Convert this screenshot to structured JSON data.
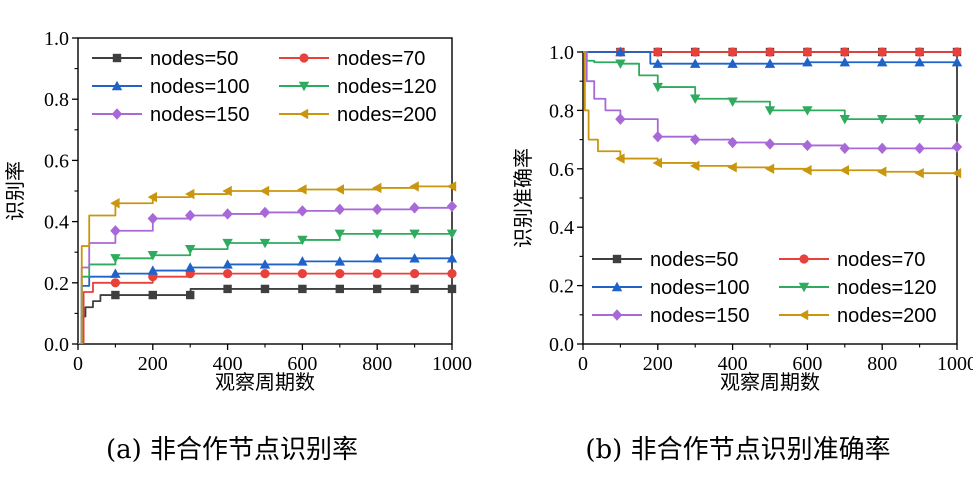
{
  "figure": {
    "caption_left": "(a) 非合作节点识别率",
    "caption_right": "(b) 非合作节点识别准确率"
  },
  "chart_data": [
    {
      "type": "line",
      "title": "",
      "xlabel": "观察周期数",
      "ylabel": "识别率",
      "xlim": [
        0,
        1000
      ],
      "ylim": [
        0,
        1.0
      ],
      "xticks": [
        "0",
        "200",
        "400",
        "600",
        "800",
        "1000"
      ],
      "yticks": [
        "0.0",
        "0.2",
        "0.4",
        "0.6",
        "0.8",
        "1.0"
      ],
      "legend_position": "top",
      "series": [
        {
          "name": "nodes=50",
          "color": "#3f3f3f",
          "marker": "square",
          "x": [
            0,
            10,
            20,
            40,
            60,
            100,
            200,
            300,
            301,
            400,
            500,
            600,
            700,
            800,
            900,
            1000
          ],
          "y": [
            0,
            0.09,
            0.12,
            0.14,
            0.16,
            0.16,
            0.16,
            0.16,
            0.18,
            0.18,
            0.18,
            0.18,
            0.18,
            0.18,
            0.18,
            0.18
          ]
        },
        {
          "name": "nodes=70",
          "color": "#e8403a",
          "marker": "circle",
          "x": [
            0,
            15,
            40,
            100,
            200,
            300,
            400,
            500,
            600,
            700,
            800,
            900,
            1000
          ],
          "y": [
            0,
            0.17,
            0.2,
            0.2,
            0.22,
            0.23,
            0.23,
            0.23,
            0.23,
            0.23,
            0.23,
            0.23,
            0.23
          ]
        },
        {
          "name": "nodes=100",
          "color": "#1f62c8",
          "marker": "triangle-up",
          "x": [
            0,
            10,
            30,
            100,
            200,
            300,
            400,
            500,
            600,
            700,
            800,
            900,
            1000
          ],
          "y": [
            0,
            0.19,
            0.22,
            0.23,
            0.24,
            0.25,
            0.26,
            0.26,
            0.27,
            0.27,
            0.28,
            0.28,
            0.28
          ]
        },
        {
          "name": "nodes=120",
          "color": "#2eab5f",
          "marker": "triangle-down",
          "x": [
            0,
            10,
            30,
            100,
            200,
            300,
            400,
            500,
            600,
            700,
            800,
            900,
            1000
          ],
          "y": [
            0,
            0.22,
            0.26,
            0.28,
            0.29,
            0.31,
            0.33,
            0.33,
            0.34,
            0.36,
            0.36,
            0.36,
            0.36
          ]
        },
        {
          "name": "nodes=150",
          "color": "#a868d8",
          "marker": "diamond",
          "x": [
            0,
            10,
            30,
            100,
            200,
            300,
            400,
            500,
            600,
            700,
            800,
            900,
            1000
          ],
          "y": [
            0,
            0.25,
            0.33,
            0.37,
            0.41,
            0.42,
            0.425,
            0.43,
            0.435,
            0.44,
            0.44,
            0.445,
            0.45
          ]
        },
        {
          "name": "nodes=200",
          "color": "#c9960d",
          "marker": "triangle-left",
          "x": [
            0,
            10,
            30,
            100,
            200,
            300,
            400,
            500,
            600,
            700,
            800,
            900,
            1000
          ],
          "y": [
            0,
            0.32,
            0.42,
            0.46,
            0.48,
            0.49,
            0.5,
            0.5,
            0.505,
            0.505,
            0.51,
            0.515,
            0.515
          ]
        }
      ]
    },
    {
      "type": "line",
      "title": "",
      "xlabel": "观察周期数",
      "ylabel": "识别准确率",
      "xlim": [
        0,
        1000
      ],
      "ylim": [
        0,
        1.0
      ],
      "xticks": [
        "0",
        "200",
        "400",
        "600",
        "800",
        "1000"
      ],
      "yticks": [
        "0.0",
        "0.2",
        "0.4",
        "0.6",
        "0.8",
        "1.0"
      ],
      "legend_position": "bottom",
      "series": [
        {
          "name": "nodes=50",
          "color": "#3f3f3f",
          "marker": "square",
          "x": [
            0,
            100,
            200,
            300,
            400,
            500,
            600,
            700,
            800,
            900,
            1000
          ],
          "y": [
            1.0,
            1.0,
            1.0,
            1.0,
            1.0,
            1.0,
            1.0,
            1.0,
            1.0,
            1.0,
            1.0
          ]
        },
        {
          "name": "nodes=70",
          "color": "#e8403a",
          "marker": "circle",
          "x": [
            0,
            100,
            200,
            300,
            400,
            500,
            600,
            700,
            800,
            900,
            1000
          ],
          "y": [
            1.0,
            1.0,
            1.0,
            1.0,
            1.0,
            1.0,
            1.0,
            1.0,
            1.0,
            1.0,
            1.0
          ]
        },
        {
          "name": "nodes=100",
          "color": "#1f62c8",
          "marker": "triangle-up",
          "x": [
            0,
            100,
            180,
            200,
            300,
            400,
            500,
            600,
            700,
            800,
            900,
            1000
          ],
          "y": [
            1.0,
            1.0,
            0.96,
            0.96,
            0.96,
            0.96,
            0.96,
            0.965,
            0.965,
            0.965,
            0.965,
            0.965
          ]
        },
        {
          "name": "nodes=120",
          "color": "#2eab5f",
          "marker": "triangle-down",
          "x": [
            0,
            10,
            30,
            100,
            150,
            200,
            300,
            400,
            500,
            600,
            700,
            800,
            900,
            1000
          ],
          "y": [
            1.0,
            0.97,
            0.965,
            0.96,
            0.92,
            0.88,
            0.84,
            0.83,
            0.8,
            0.8,
            0.77,
            0.77,
            0.77,
            0.77
          ]
        },
        {
          "name": "nodes=150",
          "color": "#a868d8",
          "marker": "diamond",
          "x": [
            0,
            10,
            30,
            60,
            100,
            200,
            300,
            400,
            500,
            600,
            700,
            800,
            900,
            1000
          ],
          "y": [
            1.0,
            0.9,
            0.84,
            0.8,
            0.77,
            0.71,
            0.7,
            0.69,
            0.685,
            0.68,
            0.67,
            0.67,
            0.67,
            0.675
          ]
        },
        {
          "name": "nodes=200",
          "color": "#c9960d",
          "marker": "triangle-left",
          "x": [
            0,
            5,
            15,
            40,
            100,
            200,
            300,
            400,
            500,
            600,
            700,
            800,
            900,
            1000
          ],
          "y": [
            1.0,
            0.8,
            0.7,
            0.66,
            0.635,
            0.62,
            0.61,
            0.605,
            0.6,
            0.595,
            0.595,
            0.59,
            0.585,
            0.585
          ]
        }
      ]
    }
  ]
}
